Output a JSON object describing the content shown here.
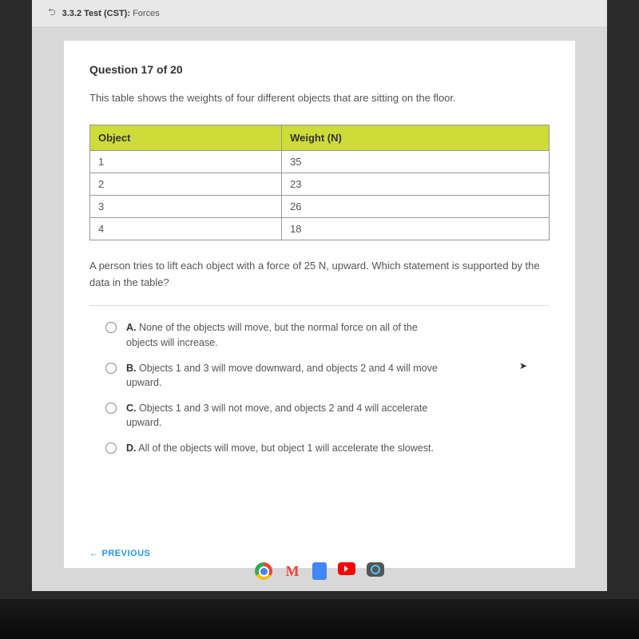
{
  "breadcrumb": {
    "section": "3.3.2",
    "test_label": "Test (CST):",
    "topic": "Forces"
  },
  "question": {
    "number_label": "Question 17 of 20",
    "prompt": "This table shows the weights of four different objects that are sitting on the floor.",
    "follow_up": "A person tries to lift each object with a force of 25 N, upward. Which statement is supported by the data in the table?"
  },
  "table": {
    "columns": [
      "Object",
      "Weight (N)"
    ],
    "rows": [
      [
        "1",
        "35"
      ],
      [
        "2",
        "23"
      ],
      [
        "3",
        "26"
      ],
      [
        "4",
        "18"
      ]
    ],
    "header_bg": "#cddc39",
    "border_color": "#999999",
    "col_widths": [
      "50%",
      "50%"
    ]
  },
  "options": [
    {
      "letter": "A.",
      "text": "None of the objects will move, but the normal force on all of the objects will increase."
    },
    {
      "letter": "B.",
      "text": "Objects 1 and 3 will move downward, and objects 2 and 4 will move upward."
    },
    {
      "letter": "C.",
      "text": "Objects 1 and 3 will not move, and objects 2 and 4 will accelerate upward."
    },
    {
      "letter": "D.",
      "text": "All of the objects will move, but object 1 will accelerate the slowest."
    }
  ],
  "nav": {
    "previous": "PREVIOUS"
  },
  "colors": {
    "page_bg": "#d8d8d8",
    "card_bg": "#ffffff",
    "text_primary": "#333333",
    "text_secondary": "#555555",
    "link": "#2196f3"
  }
}
